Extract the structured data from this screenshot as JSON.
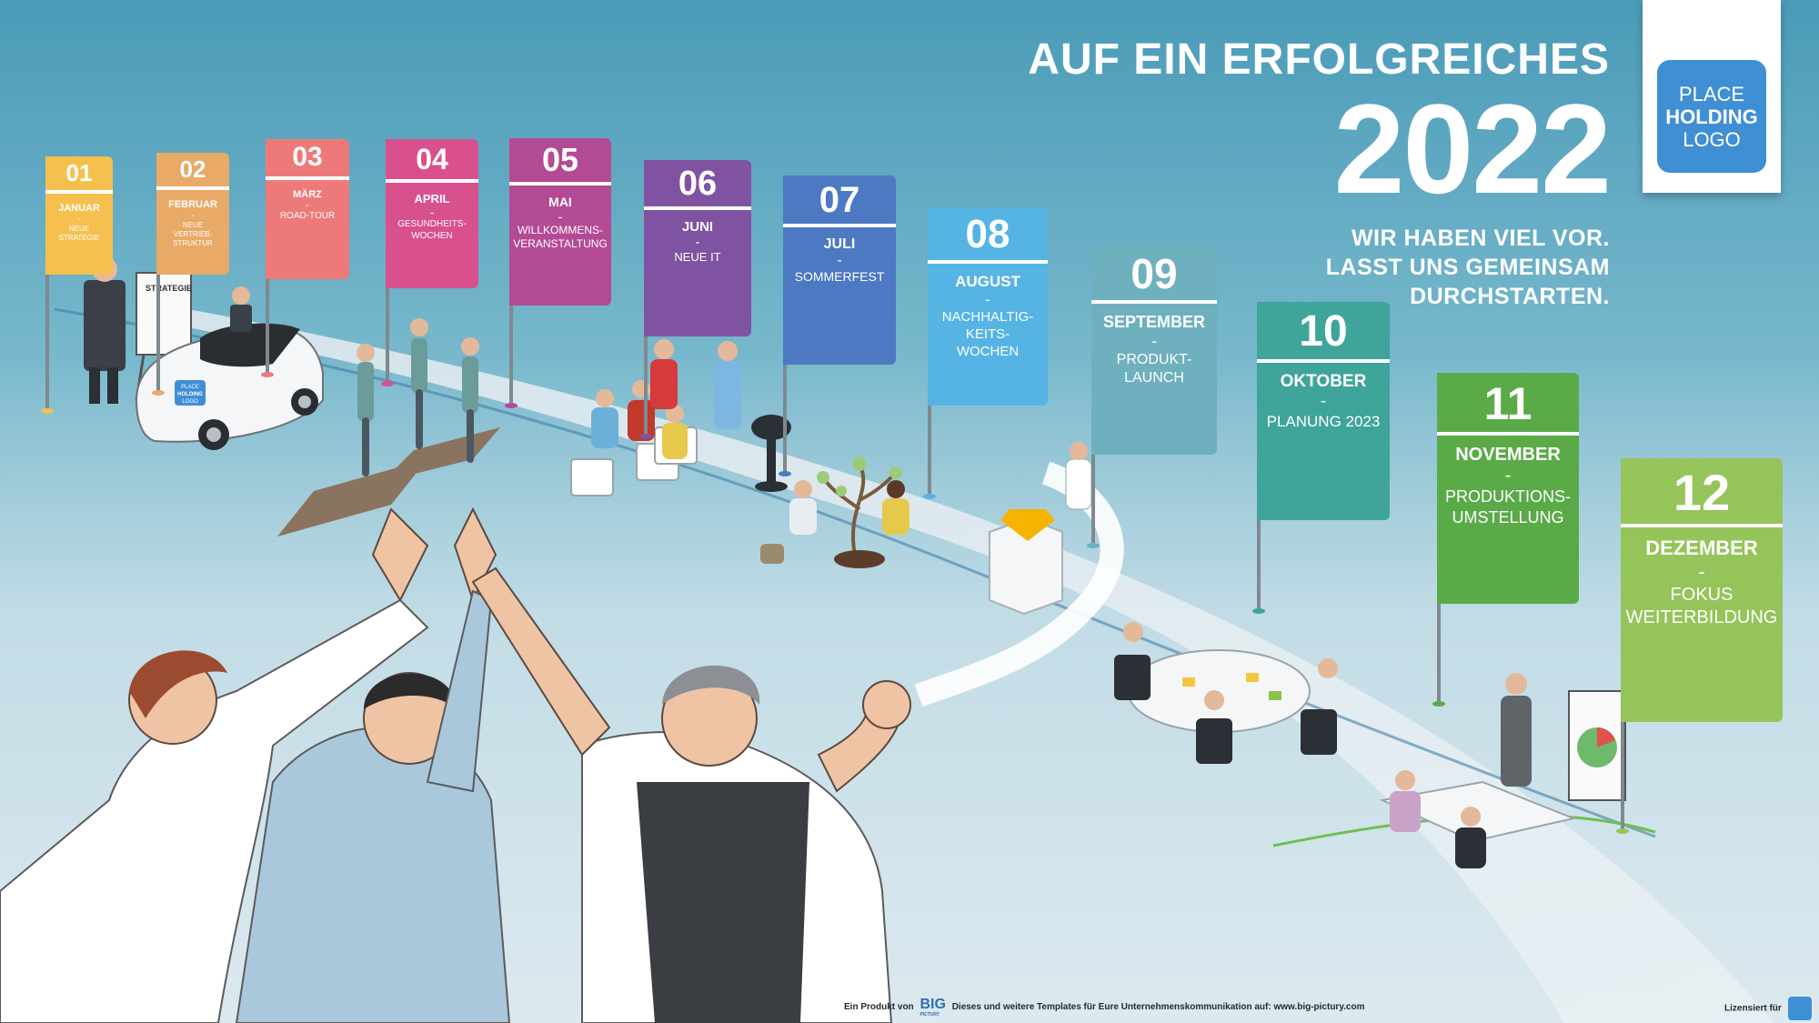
{
  "header": {
    "line1": "AUF EIN ERFOLGREICHES",
    "year": "2022",
    "tagline": [
      "WIR HABEN VIEL VOR.",
      "LASST UNS GEMEINSAM",
      "DURCHSTARTEN."
    ]
  },
  "logo": {
    "line1": "PLACE",
    "line2": "HOLDING",
    "line3": "LOGO"
  },
  "months": [
    {
      "num": "01",
      "month": "JANUAR",
      "dash": "-",
      "desc": [
        "NEUE",
        "STRATEGIE"
      ],
      "color": "#f6c04f"
    },
    {
      "num": "02",
      "month": "FEBRUAR",
      "dash": "-",
      "desc": [
        "NEUE",
        "VERTRIEB-",
        "STRUKTUR"
      ],
      "color": "#e9a967"
    },
    {
      "num": "03",
      "month": "MÄRZ",
      "dash": "-",
      "desc": [
        "ROAD-TOUR"
      ],
      "color": "#ed7a78"
    },
    {
      "num": "04",
      "month": "APRIL",
      "dash": "-",
      "desc": [
        "GESUNDHEITS-",
        "WOCHEN"
      ],
      "color": "#d9508f"
    },
    {
      "num": "05",
      "month": "MAI",
      "dash": "-",
      "desc": [
        "WILLKOMMENS-",
        "VERANSTALTUNG"
      ],
      "color": "#b34a94"
    },
    {
      "num": "06",
      "month": "JUNI",
      "dash": "-",
      "desc": [
        "NEUE IT"
      ],
      "color": "#8053a2"
    },
    {
      "num": "07",
      "month": "JULI",
      "dash": "-",
      "desc": [
        "SOMMERFEST"
      ],
      "color": "#4c79c2"
    },
    {
      "num": "08",
      "month": "AUGUST",
      "dash": "-",
      "desc": [
        "NACHHALTIG-",
        "KEITS-",
        "WOCHEN"
      ],
      "color": "#56b4e4"
    },
    {
      "num": "09",
      "month": "SEPTEMBER",
      "dash": "-",
      "desc": [
        "PRODUKT-",
        "LAUNCH"
      ],
      "color": "#6fb0bf"
    },
    {
      "num": "10",
      "month": "OKTOBER",
      "dash": "-",
      "desc": [
        "PLANUNG 2023"
      ],
      "color": "#3fa49a"
    },
    {
      "num": "11",
      "month": "NOVEMBER",
      "dash": "-",
      "desc": [
        "PRODUKTIONS-",
        "UMSTELLUNG"
      ],
      "color": "#5aaa48"
    },
    {
      "num": "12",
      "month": "DEZEMBER",
      "dash": "-",
      "desc": [
        "FOKUS",
        "WEITERBILDUNG"
      ],
      "color": "#95c45a"
    }
  ],
  "illustration": {
    "flipchart_label": "STRATEGIE",
    "car_logo": [
      "PLACE",
      "HOLDING",
      "LOGO"
    ]
  },
  "footer": {
    "product_prefix": "Ein Produkt von",
    "brand_top": "BIG",
    "brand_bottom": "PICTURY",
    "templates_text": "Dieses und weitere Templates für Eure Unternehmenskommunikation auf: www.big-pictury.com",
    "licensed": "Lizensiert für"
  }
}
